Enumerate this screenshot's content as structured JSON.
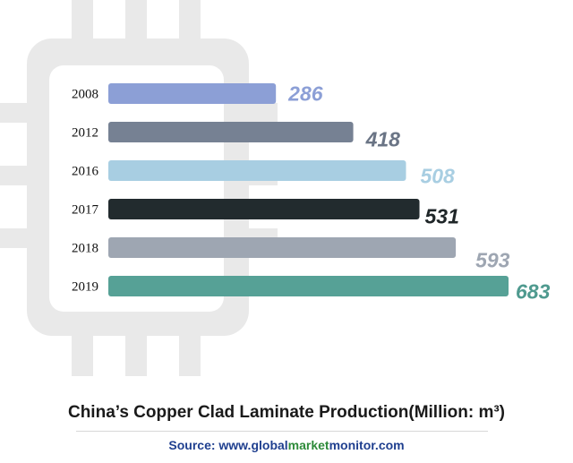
{
  "chart_data": {
    "type": "bar",
    "orientation": "horizontal",
    "title": "China’s Copper Clad Laminate Production(Million: m³)",
    "categories": [
      "2008",
      "2012",
      "2016",
      "2017",
      "2018",
      "2019"
    ],
    "values": [
      286,
      418,
      508,
      531,
      593,
      683
    ],
    "bar_colors": [
      "#8c9fd6",
      "#768193",
      "#a8cee2",
      "#222b2e",
      "#9ea6b2",
      "#56a196"
    ],
    "label_colors": [
      "#8c9fd6",
      "#6a7485",
      "#a8cee2",
      "#1f2628",
      "#9ea6b2",
      "#4f9a8f"
    ],
    "xlim": [
      0,
      700
    ],
    "grid": false,
    "legend": "none"
  },
  "source": {
    "prefix": "Source: ",
    "site_start": "www.global",
    "site_mid": "market",
    "site_end": "monitor.com"
  }
}
